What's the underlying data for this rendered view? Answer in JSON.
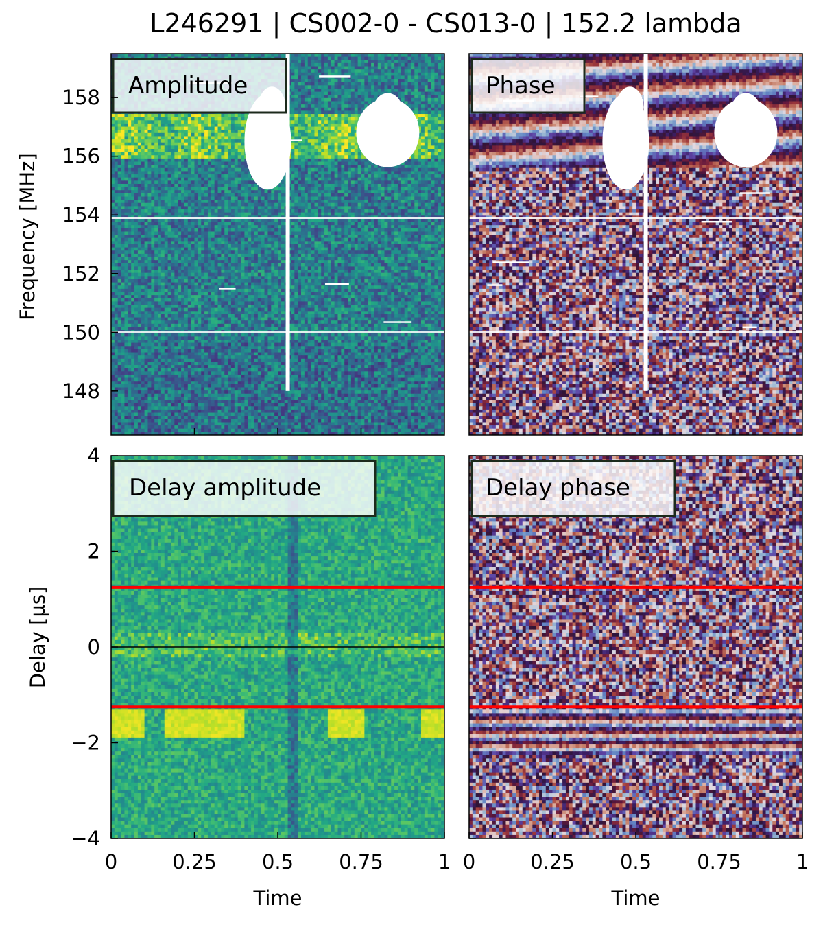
{
  "title": "L246291 | CS002-0 - CS013-0 | 152.2 lambda",
  "colors": {
    "amplitude_colormap": "viridis",
    "phase_colormap": "twilight_shifted",
    "reference_line": "#ff0000",
    "zero_line": "#000000",
    "flag": "#ffffff"
  },
  "chart_data": [
    {
      "type": "heatmap",
      "panel": "top-left",
      "label": "Amplitude",
      "xlabel": "",
      "ylabel": "Frequency [MHz]",
      "xlim": [
        0,
        1
      ],
      "ylim": [
        146.5,
        159.5
      ],
      "yticks": [
        148,
        150,
        152,
        154,
        156,
        158
      ],
      "ytick_labels": [
        "148",
        "150",
        "152",
        "154",
        "156",
        "158"
      ],
      "colormap": "viridis",
      "grid": false,
      "features": {
        "bright_band_mhz": [
          156,
          157.5
        ],
        "flagged_line_mhz": [
          153.9,
          150.0
        ],
        "flagged_time_column": 0.53,
        "flagged_blobs": [
          {
            "t": 0.47,
            "f": 156.5
          },
          {
            "t": 0.83,
            "f": 156.8
          }
        ]
      }
    },
    {
      "type": "heatmap",
      "panel": "top-right",
      "label": "Phase",
      "xlabel": "",
      "ylabel": "",
      "xlim": [
        0,
        1
      ],
      "ylim": [
        146.5,
        159.5
      ],
      "colormap": "twilight_shifted",
      "grid": false
    },
    {
      "type": "heatmap",
      "panel": "bottom-left",
      "label": "Delay amplitude",
      "xlabel": "Time",
      "ylabel": "Delay [µs]",
      "xlim": [
        0,
        1
      ],
      "ylim": [
        -4,
        4
      ],
      "xticks": [
        0,
        0.25,
        0.5,
        0.75,
        1
      ],
      "xtick_labels": [
        "0",
        "0.25",
        "0.5",
        "0.75",
        "1"
      ],
      "yticks": [
        -4,
        -2,
        0,
        2,
        4
      ],
      "ytick_labels": [
        "−4",
        "−2",
        "0",
        "2",
        "4"
      ],
      "colormap": "viridis",
      "grid": false,
      "hlines_red": [
        1.25,
        -1.25
      ],
      "hline_black": 0,
      "features": {
        "bright_band_us": [
          -1.3,
          -1.8
        ]
      }
    },
    {
      "type": "heatmap",
      "panel": "bottom-right",
      "label": "Delay phase",
      "xlabel": "Time",
      "ylabel": "",
      "xlim": [
        0,
        1
      ],
      "ylim": [
        -4,
        4
      ],
      "xticks": [
        0,
        0.25,
        0.5,
        0.75,
        1
      ],
      "xtick_labels": [
        "0",
        "0.25",
        "0.5",
        "0.75",
        "1"
      ],
      "colormap": "twilight_shifted",
      "grid": false,
      "hlines_red": [
        1.25,
        -1.25
      ]
    }
  ]
}
